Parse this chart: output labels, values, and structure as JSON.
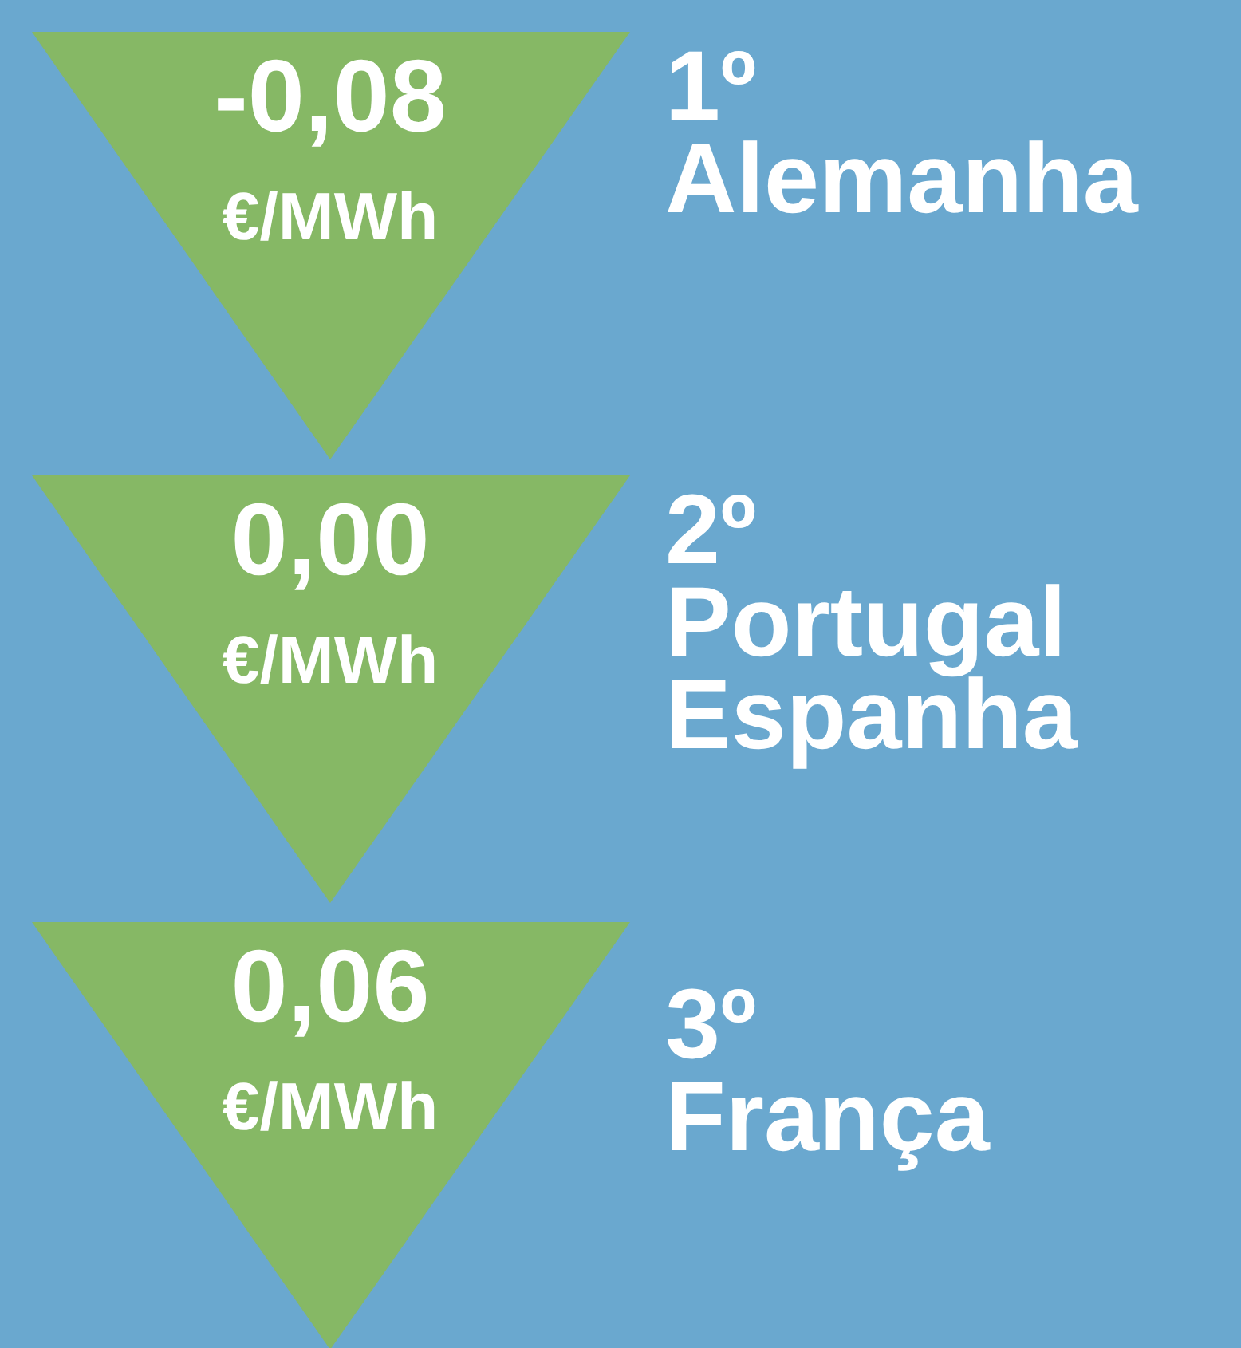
{
  "chart_data": {
    "type": "other",
    "categories": [
      "1º\nAlemanha",
      "2º\nPortugal\nEspanha",
      "3º\nFrança"
    ],
    "values": [
      -0.08,
      0.0,
      0.06
    ],
    "value_labels": [
      "-0,08",
      "0,00",
      "0,06"
    ],
    "ylabel": "€/MWh",
    "color": "#86b865"
  }
}
